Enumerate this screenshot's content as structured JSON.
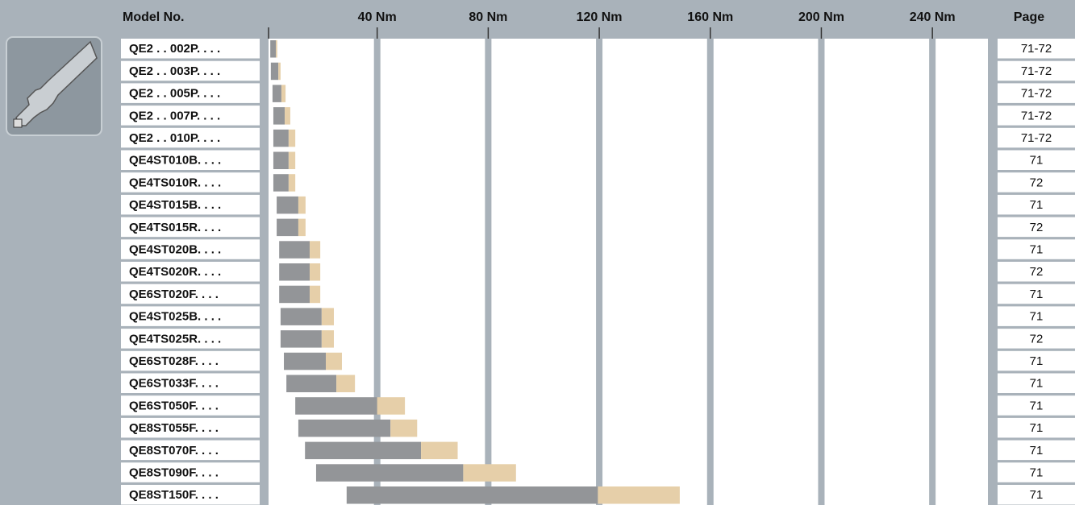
{
  "chart_data": {
    "type": "range_bar",
    "model_header": "Model No.",
    "page_header": "Page",
    "categories": [
      "QE2 . . 002P. . . .",
      "QE2 . . 003P. . . .",
      "QE2 . . 005P. . . .",
      "QE2 . . 007P. . . .",
      "QE2 . . 010P. . . .",
      "QE4ST010B. . . .",
      "QE4TS010R. . . .",
      "QE4ST015B. . . .",
      "QE4TS015R. . . .",
      "QE4ST020B. . . .",
      "QE4TS020R. . . .",
      "QE6ST020F. . . .",
      "QE4ST025B. . . .",
      "QE4TS025R. . . .",
      "QE6ST028F. . . .",
      "QE6ST033F. . . .",
      "QE6ST050F. . . .",
      "QE8ST055F. . . .",
      "QE8ST070F. . . .",
      "QE8ST090F. . . .",
      "QE8ST150F. . . ."
    ],
    "pages": [
      "71-72",
      "71-72",
      "71-72",
      "71-72",
      "71-72",
      "71",
      "72",
      "71",
      "72",
      "71",
      "72",
      "71",
      "71",
      "72",
      "71",
      "71",
      "71",
      "71",
      "71",
      "71",
      "71"
    ],
    "start": [
      1.5,
      1.7,
      2.3,
      2.6,
      2.6,
      2.6,
      2.6,
      3.8,
      3.8,
      4.7,
      4.7,
      4.7,
      5.2,
      5.2,
      6.4,
      7.3,
      10.5,
      11.6,
      14,
      18,
      29
    ],
    "gray_end": [
      3.5,
      4.4,
      5.5,
      6.7,
      8.1,
      8.1,
      8.1,
      11.6,
      11.6,
      15.7,
      15.7,
      15.7,
      20,
      20,
      21.5,
      25.3,
      40,
      44.8,
      55.8,
      71,
      119.5
    ],
    "max": [
      4,
      5.2,
      7,
      8.7,
      10.5,
      10.5,
      10.5,
      14.2,
      14.2,
      19.5,
      19.5,
      19.5,
      24.4,
      24.4,
      27.3,
      32,
      50,
      54.4,
      69,
      90,
      149
    ],
    "gray_color": "#939598",
    "beige_color": "#e6cfa9",
    "xlim": [
      0,
      260
    ],
    "xticks": [
      {
        "value": 40,
        "label": "40 Nm"
      },
      {
        "value": 80,
        "label": "80 Nm"
      },
      {
        "value": 120,
        "label": "120 Nm"
      },
      {
        "value": 160,
        "label": "160 Nm"
      },
      {
        "value": 200,
        "label": "200 Nm"
      },
      {
        "value": 240,
        "label": "240 Nm"
      }
    ],
    "grid": true
  }
}
